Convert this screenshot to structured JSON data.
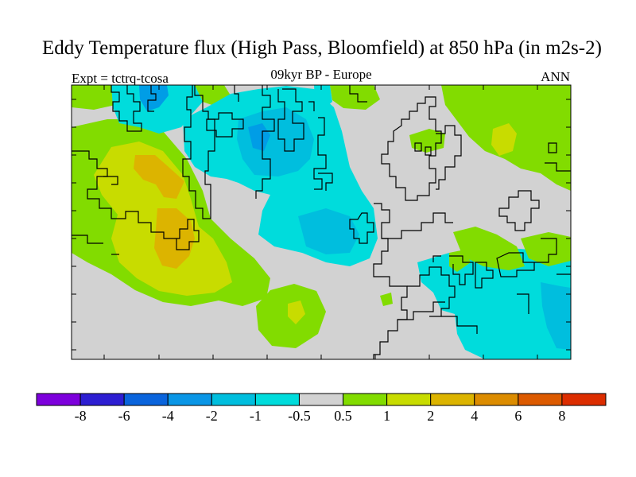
{
  "title": "Eddy Temperature flux (High Pass, Bloomfield) at 850 hPa (in m2s-2)",
  "subtitle": "09kyr BP - Europe",
  "experiment": "Expt = tctrq-tcosa",
  "season": "ANN",
  "colors": {
    "land_gray": "#d2d2d2",
    "neg_0_5_to_1": "#00dcdc",
    "neg_1_to_2": "#00bede",
    "neg_2_to_4": "#009de6",
    "pos_0_5_to_1": "#82dc00",
    "pos_1_to_2": "#c8dc00",
    "pos_2_to_4": "#dcb400",
    "coastline": "#000000"
  },
  "colorbar": {
    "colors": [
      "#7d00dc",
      "#2d1ed2",
      "#0a64dc",
      "#0a96e6",
      "#00bede",
      "#00dcdc",
      "#d2d2d2",
      "#82dc00",
      "#c8dc00",
      "#dcb400",
      "#dc8c00",
      "#dc5a00",
      "#dc2d00"
    ],
    "labels": [
      "-8",
      "-6",
      "-4",
      "-2",
      "-1",
      "-0.5",
      "0.5",
      "1",
      "2",
      "4",
      "6",
      "8"
    ]
  }
}
